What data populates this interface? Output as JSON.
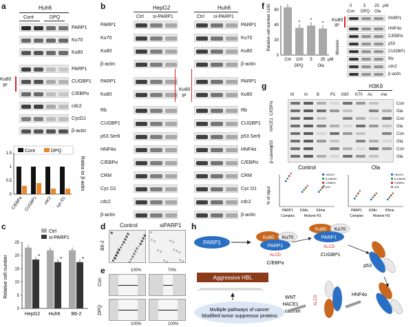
{
  "panel_letters": {
    "a": "a",
    "b": "b",
    "c": "c",
    "d": "d",
    "e": "e",
    "f": "f",
    "g": "g",
    "h": "h"
  },
  "panel_a": {
    "cell_line": "Huh6",
    "conditions": [
      "Cont",
      "DPQ"
    ],
    "rows": [
      "PARP1",
      "Ku70",
      "Ku80",
      "PARP1",
      "CUGBP1",
      "C/EBPα",
      "cdc2",
      "CycD1",
      "β-actin"
    ],
    "ip_label": [
      "Ku80",
      "IP"
    ]
  },
  "chart_a": {
    "chart_data": {
      "type": "bar",
      "categories": [
        "C/EBPα",
        "CUGBP1",
        "cdc2",
        "cyc D1"
      ],
      "series": [
        {
          "name": "Cont",
          "values": [
            1.0,
            1.0,
            1.0,
            1.0
          ],
          "color": "#111111"
        },
        {
          "name": "DPQ",
          "values": [
            0.3,
            0.4,
            0.2,
            0.2
          ],
          "color": "#e8872c"
        }
      ],
      "ylim": [
        0,
        1.5
      ],
      "yticks": [
        "0",
        "0.5",
        "1",
        "1.5"
      ],
      "ylabel": "Ratios to β-actin"
    }
  },
  "panel_b": {
    "left_cell": "HepG2",
    "right_cell": "Huh6",
    "conditions": [
      "Ctrl",
      "si-PARP1"
    ],
    "left_rows": [
      "PARP1",
      "Ku70",
      "Ku80",
      "β-actin",
      "PARP1",
      "Ku80",
      "Rb",
      "CUGBP1",
      "p53 Ser6",
      "HNF4α",
      "C/EBPα",
      "CRM",
      "Cyc D1",
      "cdc2",
      "β-actin"
    ],
    "right_rows": [
      "PARP1",
      "Ku70",
      "Ku80",
      "β-actin",
      "PARP1",
      "Ku80",
      "Rb",
      "CUGBP1",
      "p53 Ser6",
      "HNF4α",
      "C/EBPα",
      "CRM",
      "Cyc D1",
      "cdc2",
      "β-actin"
    ],
    "ip_label": [
      "Ku80",
      "IP"
    ]
  },
  "chart_c": {
    "chart_data": {
      "type": "bar",
      "categories": [
        "HepG2",
        "Huh6",
        "B6-2"
      ],
      "series": [
        {
          "name": "Ctrl",
          "values": [
            23,
            22,
            22
          ],
          "color": "#a9a9a9"
        },
        {
          "name": "si-PARP1",
          "values": [
            18.5,
            17.5,
            17.5
          ],
          "color": "#333333"
        }
      ],
      "ylim": [
        0,
        25
      ],
      "yticks": [
        "0",
        "5",
        "10",
        "15",
        "20",
        "25"
      ],
      "ylabel": "Relative cell number",
      "significance_marker": "*"
    }
  },
  "panel_d": {
    "col_labels": [
      "Control",
      "siPARP1"
    ],
    "row_label": "B6-2"
  },
  "panel_e": {
    "row_labels": [
      "Con",
      "DPQ"
    ],
    "top_percents": [
      "100%",
      "70%"
    ],
    "bottom_percents": [
      "100%",
      "100%"
    ]
  },
  "chart_f": {
    "chart_data": {
      "type": "bar",
      "categories": [
        "Cnt",
        "100",
        "5",
        "25"
      ],
      "values": [
        63,
        36,
        39,
        35
      ],
      "ylim": [
        0,
        60
      ],
      "yticks": [
        "0",
        "20",
        "40",
        "60"
      ],
      "ylabel": "Relative cell number x100",
      "group_labels": [
        "DPQ",
        "Ola"
      ],
      "unit": "μM",
      "significance_marker": "*"
    }
  },
  "panel_f_blot": {
    "top_labels": [
      "0",
      "5",
      "25",
      "μM"
    ],
    "conditions": [
      "Con",
      "DPQ",
      "Ola"
    ],
    "rows": [
      "PARP1",
      "HNF4α",
      "C/EBPα",
      "p53",
      "CUGBP1",
      "Rb",
      "cdc2",
      "β-actin"
    ],
    "ip_label": [
      "Ku80",
      "IP"
    ],
    "western_label": "Western"
  },
  "panel_g": {
    "header": "H3K9",
    "lanes": [
      "M",
      "In",
      "B",
      "P1",
      "K80",
      "K70",
      "Ac",
      "-me"
    ],
    "row_groups": [
      "C/EBPα",
      "HACE1",
      "p53",
      "β-catenin"
    ],
    "row_conditions": [
      "Con",
      "Ola",
      "Con",
      "Ola",
      "Con",
      "Ola",
      "Con",
      "Ola"
    ]
  },
  "chart_g": {
    "chart_data": {
      "type": "scatter",
      "panels": [
        "Control",
        "Ola"
      ],
      "categories": [
        "PARP1",
        "K9Ac",
        "K9me"
      ],
      "group_labels": [
        "Complex",
        "Histone H3"
      ],
      "ylabel": "% of input",
      "legend": [
        "HACE1",
        "β-catenin",
        "C/EBPα",
        "p53"
      ],
      "legend_colors": [
        "#1f5fd6",
        "#2e9e3e",
        "#d62828",
        "#888888"
      ]
    }
  },
  "panel_h": {
    "parp1": "PARP1",
    "ku80": "Ku80",
    "ku70": "Ku70",
    "alcd": "ALCD",
    "cebpa": "C/EBPα",
    "cugbp1": "CUGBP1",
    "p53": "p53",
    "hnf4a": "HNF4α",
    "wnt": "WNT",
    "hace1": "HACE1",
    "bcatenin": "β-catenin",
    "hbl": "Aggressive HBL",
    "pathways": [
      "Multiple pathways of cancer",
      "Modified tumor suppressor proteins"
    ]
  }
}
